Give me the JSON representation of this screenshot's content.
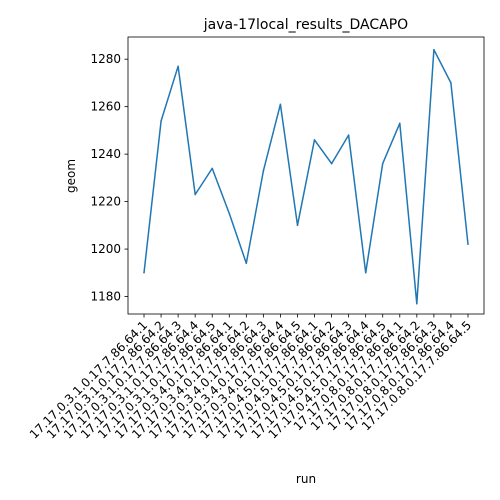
{
  "chart_data": {
    "type": "line",
    "title": "java-17local_results_DACAPO",
    "xlabel": "run",
    "ylabel": "geom",
    "categories": [
      "17.17.0.3.1.0.17.7.86.64.1",
      "17.17.0.3.1.0.17.7.86.64.2",
      "17.17.0.3.1.0.17.7.86.64.3",
      "17.17.0.3.1.0.17.7.86.64.4",
      "17.17.0.3.1.0.17.7.86.64.5",
      "17.17.0.3.4.0.17.7.86.64.1",
      "17.17.0.3.4.0.17.7.86.64.2",
      "17.17.0.3.4.0.17.7.86.64.3",
      "17.17.0.3.4.0.17.7.86.64.4",
      "17.17.0.3.4.0.17.7.86.64.5",
      "17.17.0.4.5.0.17.7.86.64.1",
      "17.17.0.4.5.0.17.7.86.64.2",
      "17.17.0.4.5.0.17.7.86.64.3",
      "17.17.0.4.5.0.17.7.86.64.4",
      "17.17.0.4.5.0.17.7.86.64.5",
      "17.17.0.8.0.17.7.86.64.1",
      "17.17.0.8.0.17.7.86.64.2",
      "17.17.0.8.0.17.7.86.64.3",
      "17.17.0.8.0.17.7.86.64.4",
      "17.17.0.8.0.17.7.86.64.5"
    ],
    "values": [
      1190,
      1254,
      1277,
      1223,
      1234,
      1215,
      1194,
      1233,
      1261,
      1210,
      1246,
      1236,
      1248,
      1190,
      1236,
      1253,
      1177,
      1284,
      1270,
      1202
    ],
    "ylim": [
      1172.65,
      1289.35
    ],
    "yticks": [
      1180,
      1200,
      1220,
      1240,
      1260,
      1280
    ],
    "grid": false,
    "line_color": "#1f77b4"
  }
}
